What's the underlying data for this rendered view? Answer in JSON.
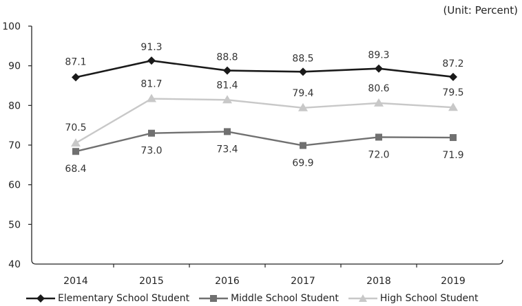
{
  "unit_label": "(Unit: Percent)",
  "chart_data": {
    "type": "line",
    "categories": [
      "2014",
      "2015",
      "2016",
      "2017",
      "2018",
      "2019"
    ],
    "ylim": [
      40,
      100
    ],
    "yticks": [
      40,
      50,
      60,
      70,
      80,
      90,
      100
    ],
    "grid": false,
    "legend_position": "bottom",
    "series": [
      {
        "name": "Elementary School Student",
        "marker": "diamond",
        "color": "#1a1a1a",
        "values": [
          87.1,
          91.3,
          88.8,
          88.5,
          89.3,
          87.2
        ],
        "labels": [
          "87.1",
          "91.3",
          "88.8",
          "88.5",
          "89.3",
          "87.2"
        ]
      },
      {
        "name": "Middle School Student",
        "marker": "square",
        "color": "#707070",
        "values": [
          68.4,
          73.0,
          73.4,
          69.9,
          72.0,
          71.9
        ],
        "labels": [
          "68.4",
          "73.0",
          "73.4",
          "69.9",
          "72.0",
          "71.9"
        ]
      },
      {
        "name": "High School Student",
        "marker": "triangle",
        "color": "#c8c8c8",
        "values": [
          70.5,
          81.7,
          81.4,
          79.4,
          80.6,
          79.5
        ],
        "labels": [
          "70.5",
          "81.7",
          "81.4",
          "79.4",
          "80.6",
          "79.5"
        ]
      }
    ]
  }
}
